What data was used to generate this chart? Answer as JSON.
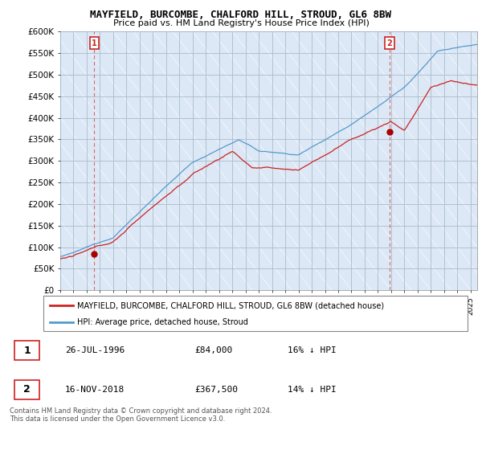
{
  "title": "MAYFIELD, BURCOMBE, CHALFORD HILL, STROUD, GL6 8BW",
  "subtitle": "Price paid vs. HM Land Registry's House Price Index (HPI)",
  "ylim": [
    0,
    600000
  ],
  "yticks": [
    0,
    50000,
    100000,
    150000,
    200000,
    250000,
    300000,
    350000,
    400000,
    450000,
    500000,
    550000,
    600000
  ],
  "ytick_labels": [
    "£0",
    "£50K",
    "£100K",
    "£150K",
    "£200K",
    "£250K",
    "£300K",
    "£350K",
    "£400K",
    "£450K",
    "£500K",
    "£550K",
    "£600K"
  ],
  "plot_bg_color": "#dce8f5",
  "hpi_color": "#5599cc",
  "price_color": "#cc2222",
  "marker_color": "#aa0000",
  "vline_color": "#dd6666",
  "sale1_x": 1996.57,
  "sale1_y": 84000,
  "sale2_x": 2018.88,
  "sale2_y": 367500,
  "legend_label1": "MAYFIELD, BURCOMBE, CHALFORD HILL, STROUD, GL6 8BW (detached house)",
  "legend_label2": "HPI: Average price, detached house, Stroud",
  "sale1_date": "26-JUL-1996",
  "sale1_price": "£84,000",
  "sale1_hpi": "16% ↓ HPI",
  "sale2_date": "16-NOV-2018",
  "sale2_price": "£367,500",
  "sale2_hpi": "14% ↓ HPI",
  "footer": "Contains HM Land Registry data © Crown copyright and database right 2024.\nThis data is licensed under the Open Government Licence v3.0.",
  "xmin": 1994,
  "xmax": 2025.5
}
